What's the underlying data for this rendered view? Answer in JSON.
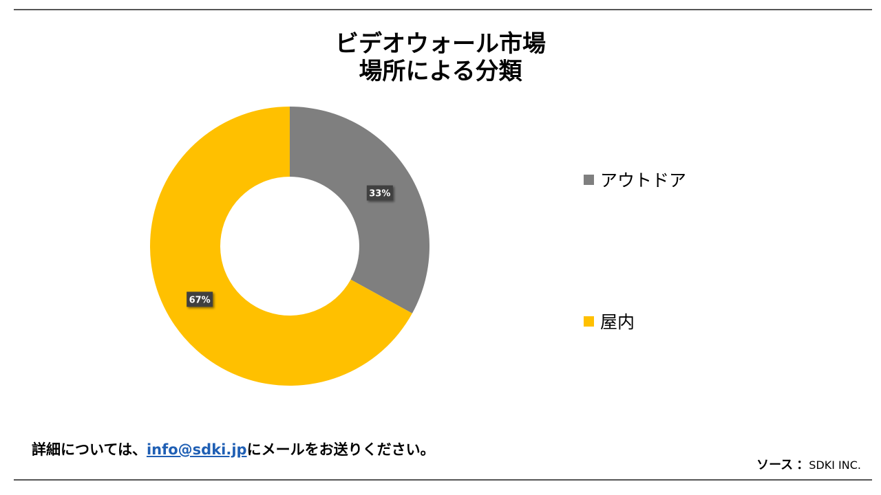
{
  "header": {
    "title_line1": "ビデオウォール市場",
    "title_line2": "場所による分類"
  },
  "chart_data": {
    "type": "pie",
    "donut": true,
    "categories": [
      "アウトドア",
      "屋内"
    ],
    "values": [
      33,
      67
    ],
    "data_labels": [
      "33%",
      "67%"
    ],
    "colors": [
      "#7f7f7f",
      "#ffc000"
    ],
    "legend_position": "right"
  },
  "footer": {
    "note_prefix": "詳細については、",
    "email": "info@sdki.jp",
    "note_suffix": "にメールをお送りください。",
    "source_label": "ソース",
    "source_separator": "：",
    "source_value": "SDKI INC."
  }
}
